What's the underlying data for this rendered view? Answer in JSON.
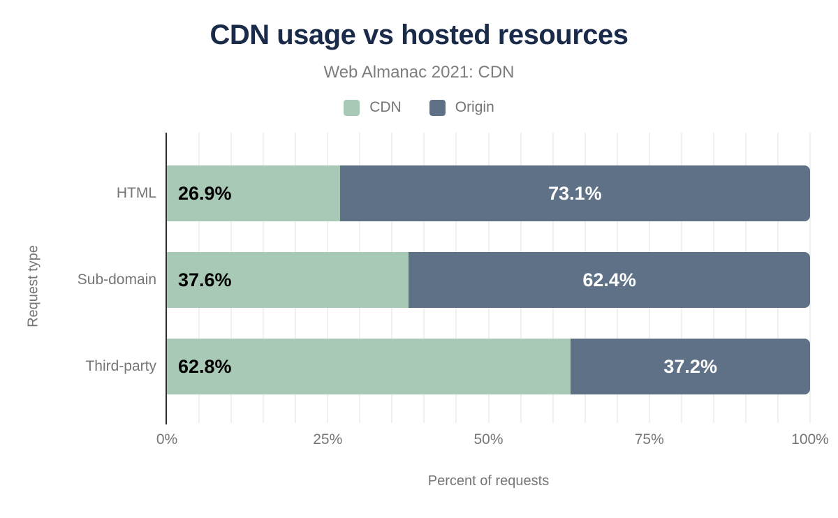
{
  "header": {
    "title": "CDN usage vs hosted resources",
    "subtitle": "Web Almanac 2021: CDN"
  },
  "legend": {
    "position": "top",
    "items": [
      {
        "label": "CDN",
        "color": "#a7c9b6"
      },
      {
        "label": "Origin",
        "color": "#5e7186"
      }
    ]
  },
  "chart_data": {
    "type": "bar",
    "orientation": "horizontal",
    "stacked": true,
    "title": "CDN usage vs hosted resources",
    "subtitle": "Web Almanac 2021: CDN",
    "categories": [
      "HTML",
      "Sub-domain",
      "Third-party"
    ],
    "series": [
      {
        "name": "CDN",
        "color": "#a7c9b6",
        "values": [
          26.9,
          37.6,
          62.8
        ]
      },
      {
        "name": "Origin",
        "color": "#5e7186",
        "values": [
          73.1,
          62.4,
          37.2
        ]
      }
    ],
    "labels": [
      [
        "26.9%",
        "73.1%"
      ],
      [
        "37.6%",
        "62.4%"
      ],
      [
        "62.8%",
        "37.2%"
      ]
    ],
    "xlabel": "Percent of requests",
    "ylabel": "Request type",
    "xlim": [
      0,
      100
    ],
    "xticks": [
      "0%",
      "25%",
      "50%",
      "75%",
      "100%"
    ],
    "xtick_values": [
      0,
      25,
      50,
      75,
      100
    ],
    "minor_grid_step": 5,
    "grid": "vertical minor gridlines every 5%",
    "legend_position": "top"
  },
  "colors": {
    "title": "#1a2b49",
    "subtitle": "#7d7d7d",
    "axis_text": "#757575",
    "cdn_label_text": "#000000",
    "origin_label_text": "#ffffff",
    "axis_line": "#2e2e2e",
    "gridline": "#f0f0f0",
    "background": "#ffffff"
  }
}
